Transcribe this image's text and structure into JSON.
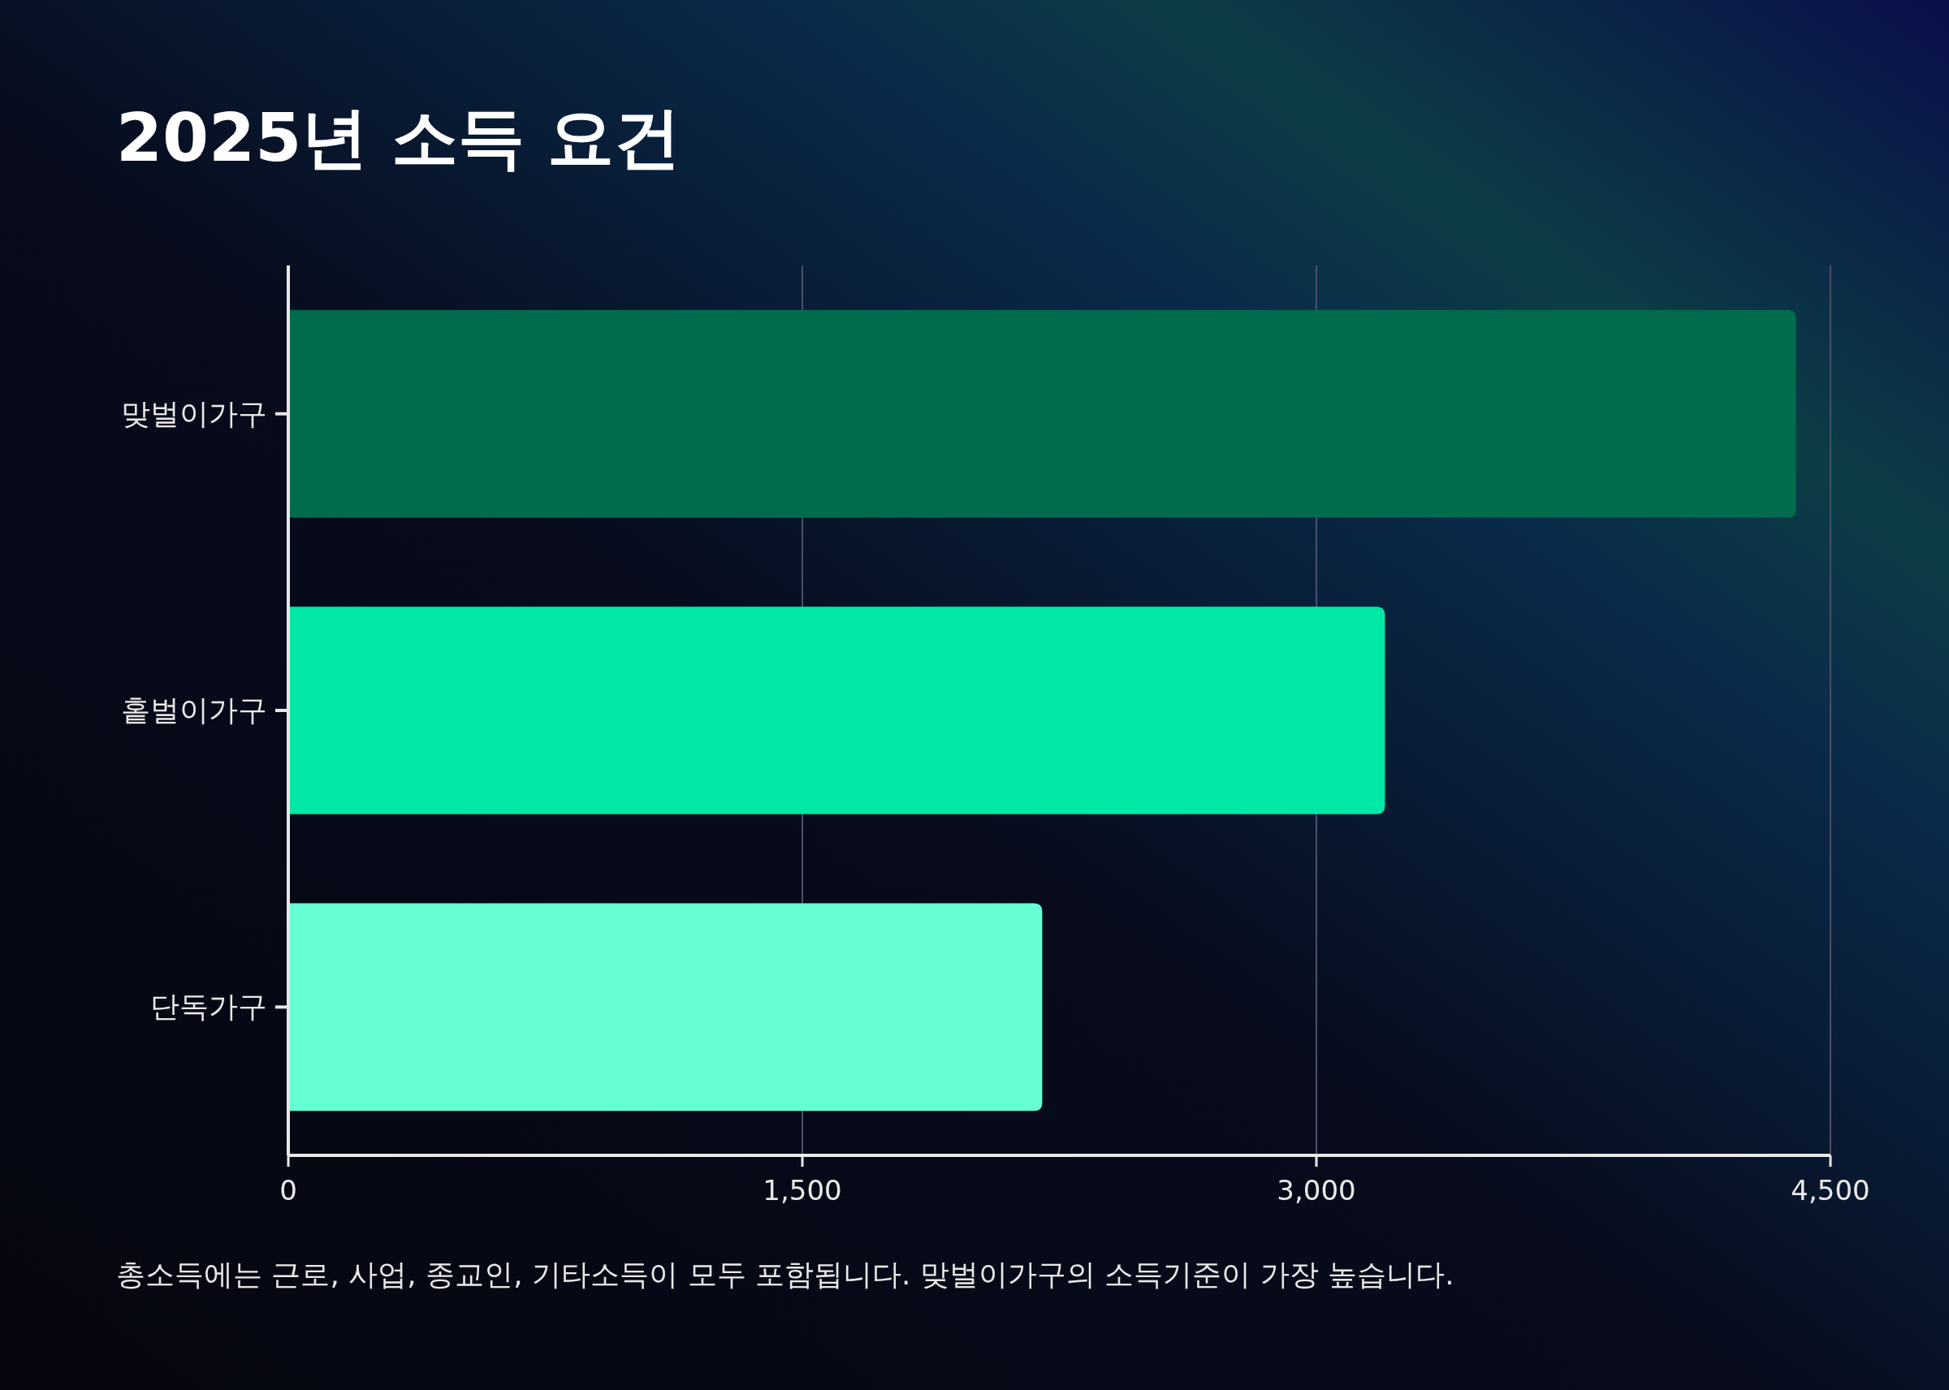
{
  "chart_data": {
    "type": "bar",
    "orientation": "horizontal",
    "title": "2025년 소득 요건",
    "categories": [
      "맞벌이가구",
      "홑벌이가구",
      "단독가구"
    ],
    "values": [
      4400,
      3200,
      2200
    ],
    "colors": [
      "#006b4d",
      "#00e8a6",
      "#66ffd3"
    ],
    "xlim": [
      0,
      4500
    ],
    "xticks": [
      0,
      {
        "value": 1500,
        "label": "1,500"
      },
      {
        "value": 3000,
        "label": "3,000"
      },
      {
        "value": 4500,
        "label": "4,500"
      }
    ],
    "grid": "x",
    "annotations": [
      "총소득에는 근로, 사업, 종교인, 기타소득이 모두 포함됩니다. 맞벌이가구의 소득기준이 가장 높습니다."
    ]
  }
}
